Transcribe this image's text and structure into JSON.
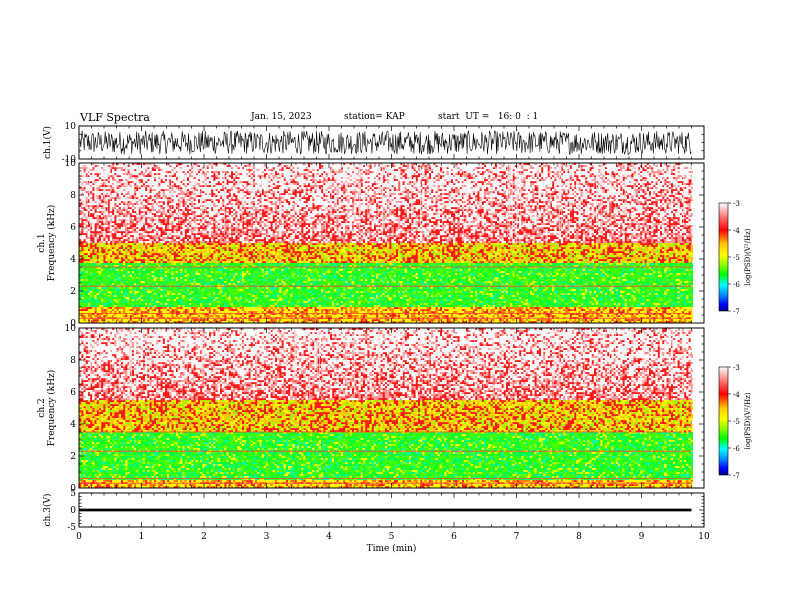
{
  "header": {
    "title": "VLF Spectra",
    "date": "Jan. 15, 2023",
    "station": "station= KAP",
    "start": "start  UT =   16: 0  : 1"
  },
  "chart_data": [
    {
      "type": "line",
      "panel": "ch1-waveform",
      "ylabel": "ch.1(V)",
      "ylim": [
        -10,
        10
      ],
      "yticks": [
        10,
        -10
      ],
      "xlim": [
        0,
        10
      ],
      "data_end_min": 9.8,
      "amplitude_range_V": [
        -8,
        8
      ]
    },
    {
      "type": "heatmap",
      "panel": "ch1-spectrogram",
      "ylabel": "ch.1\nFrequency (kHz)",
      "ylim": [
        0,
        10
      ],
      "yticks": [
        0,
        2,
        4,
        6,
        8,
        10
      ],
      "xlim": [
        0,
        10
      ],
      "data_end_min": 9.8,
      "colorbar": {
        "label": "log(PSD)(V²/Hz)",
        "range": [
          -7,
          -3
        ],
        "ticks": [
          -3,
          -4,
          -5,
          -6,
          -7
        ]
      },
      "bands_kHz": {
        "green_core": [
          1.0,
          3.8
        ],
        "yellow_edge": [
          3.8,
          5.0
        ],
        "red_above": 5.0
      }
    },
    {
      "type": "heatmap",
      "panel": "ch2-spectrogram",
      "ylabel": "ch.2\nFrequency (kHz)",
      "ylim": [
        0,
        10
      ],
      "yticks": [
        0,
        2,
        4,
        6,
        8,
        10
      ],
      "xlim": [
        0,
        10
      ],
      "data_end_min": 9.8,
      "colorbar": {
        "label": "log(PSD)(V²/Hz)",
        "range": [
          -7,
          -3
        ],
        "ticks": [
          -3,
          -4,
          -5,
          -6,
          -7
        ]
      },
      "bands_kHz": {
        "green_core": [
          0.5,
          3.6
        ],
        "yellow_edge": [
          3.6,
          5.5
        ],
        "red_above": 5.5
      }
    },
    {
      "type": "line",
      "panel": "ch3-waveform",
      "ylabel": "ch.3(V)",
      "ylim": [
        -5,
        5
      ],
      "yticks": [
        5,
        0,
        -5
      ],
      "xlim": [
        0,
        10
      ],
      "data_end_min": 9.8,
      "band_V": [
        -0.4,
        0.4
      ],
      "xlabel": "Time (min)",
      "xticks": [
        0,
        1,
        2,
        3,
        4,
        5,
        6,
        7,
        8,
        9,
        10
      ]
    }
  ],
  "colors": {
    "spec_colors": [
      "#ffffff",
      "#ff8080",
      "#ff0000",
      "#ffc800",
      "#ffff00",
      "#80ff00",
      "#00ff00",
      "#00ffff",
      "#0080ff",
      "#0000ff",
      "#000080"
    ]
  }
}
